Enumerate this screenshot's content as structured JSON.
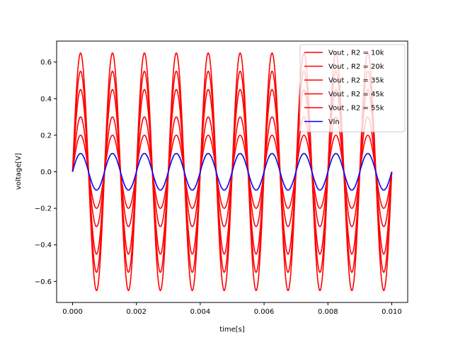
{
  "chart_data": {
    "type": "line",
    "title": "",
    "xlabel": "time[s]",
    "ylabel": "voltage[V]",
    "xlim": [
      -0.0005,
      0.0105
    ],
    "ylim": [
      -0.715,
      0.715
    ],
    "xticks": [
      0.0,
      0.002,
      0.004,
      0.006,
      0.008,
      0.01
    ],
    "xtick_labels": [
      "0.000",
      "0.002",
      "0.004",
      "0.006",
      "0.008",
      "0.010"
    ],
    "yticks": [
      -0.6,
      -0.4,
      -0.2,
      0.0,
      0.2,
      0.4,
      0.6
    ],
    "ytick_labels": [
      "−0.6",
      "−0.4",
      "−0.2",
      "0.0",
      "0.2",
      "0.4",
      "0.6"
    ],
    "grid": false,
    "legend_position": "top-right",
    "signal": {
      "frequency_hz": 1000,
      "t_start": 0.0,
      "t_end": 0.01
    },
    "series": [
      {
        "name": "Vout , R2 = 10k",
        "amplitude": 0.2,
        "color": "#ff0000"
      },
      {
        "name": "Vout , R2 = 20k",
        "amplitude": 0.3,
        "color": "#ff0000"
      },
      {
        "name": "Vout , R2 = 35k",
        "amplitude": 0.45,
        "color": "#ff0000"
      },
      {
        "name": "Vout , R2 = 45k",
        "amplitude": 0.55,
        "color": "#ff0000"
      },
      {
        "name": "Vout , R2 = 55k",
        "amplitude": 0.65,
        "color": "#ff0000"
      },
      {
        "name": "Vin",
        "amplitude": 0.1,
        "color": "#0000ff"
      }
    ]
  }
}
